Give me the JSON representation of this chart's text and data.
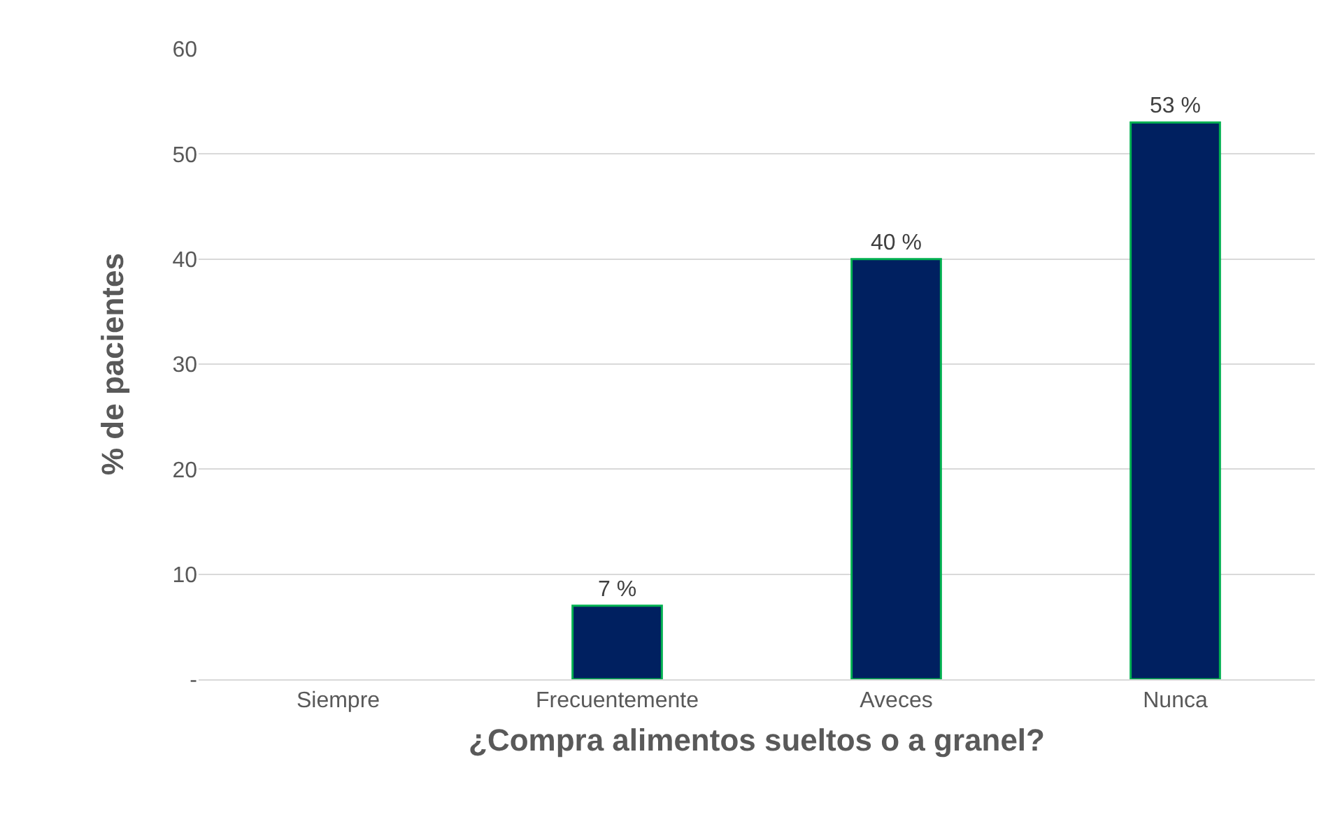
{
  "chart_data": {
    "type": "bar",
    "xlabel": "¿Compra alimentos sueltos o a granel?",
    "ylabel": "% de pacientes",
    "categories": [
      "Siempre",
      "Frecuentemente",
      "Aveces",
      "Nunca"
    ],
    "values": [
      0,
      7,
      40,
      53
    ],
    "value_labels": [
      null,
      "7 %",
      "40 %",
      "53 %"
    ],
    "color": "#002060",
    "ylim": [
      0,
      60
    ],
    "yticks": [
      {
        "value": 0,
        "label": "-"
      },
      10,
      20,
      30,
      40,
      50,
      60
    ],
    "grid": "y"
  }
}
